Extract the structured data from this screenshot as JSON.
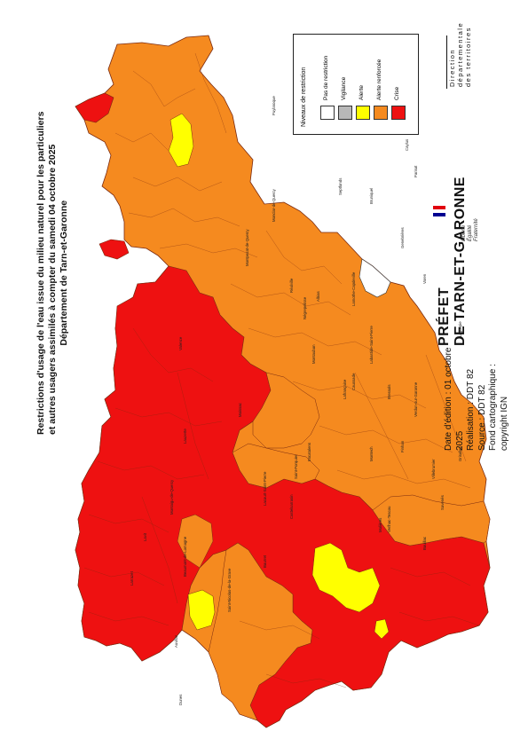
{
  "map": {
    "title_lines": [
      "Restrictions d'usage de l'eau issue du milieu naturel pour les particuliers",
      "et autres usagers assimilés à compter du samedi 04 octobre 2025",
      "Département de Tarn-et-Garonne"
    ],
    "edition_lines": [
      "Date d'édition : 01 octobre",
      "2025",
      "Réalisation : DDT 82",
      "Source : DDT 82",
      "Fond cartographique :",
      "copyright IGN"
    ],
    "legend": {
      "title": "Niveaux de restriction",
      "items": [
        {
          "label": "Pas de restriction",
          "color": "#ffffff"
        },
        {
          "label": "Vigilance",
          "color": "#b8b8b8"
        },
        {
          "label": "Alerte",
          "color": "#ffff00"
        },
        {
          "label": "Alerte renforcée",
          "color": "#f58a1f"
        },
        {
          "label": "Crise",
          "color": "#ee1111"
        }
      ]
    },
    "logo": {
      "name_lines": [
        "PRÉFET",
        "DE TARN-ET-GARONNE"
      ],
      "motto_lines": [
        "Liberté",
        "Égalité",
        "Fraternité"
      ],
      "flag_icon": "marianne-flag-icon"
    },
    "branding": {
      "lines": [
        "Direction",
        "départementale",
        "des territoires"
      ]
    },
    "communes": [
      "Montauban",
      "Castelsarrasin",
      "Moissac",
      "Valence",
      "Lauzerte",
      "Montaigu-de-Quercy",
      "Caussade",
      "Caylus",
      "Saint-Antonin-Noble-Val",
      "Verdun-sur-Garonne",
      "Grisolles",
      "Montech",
      "Nègrepelisse",
      "Beaumont-de-Lomagne",
      "Lavit",
      "Molières",
      "Monclar-de-Quercy",
      "Villebrumier",
      "Saint-Nicolas-de-la-Grave",
      "Bourret",
      "Septfonds",
      "Puylaroque",
      "Montpezat-de-Quercy",
      "Lafrançaise",
      "Albias",
      "Bruniquel",
      "Varen",
      "Laguépie",
      "Parisot",
      "Saint-Porquier",
      "Finhan",
      "Labastide-Saint-Pierre",
      "Auvillar",
      "Dunes",
      "Bressols",
      "Réalville",
      "Genebrières",
      "Verlhac-Tescou",
      "Lamothe-Capdeville",
      "Larrazet",
      "Savenès",
      "Bouillac",
      "Escatalens",
      "Lacourt-Saint-Pierre"
    ],
    "colors": {
      "crise": "#ee1111",
      "alerte_renforcee": "#f58a1f",
      "alerte": "#ffff00",
      "pas_de_restriction": "#ffffff",
      "vigilance": "#b8b8b8",
      "border": "#7a2a10"
    }
  }
}
